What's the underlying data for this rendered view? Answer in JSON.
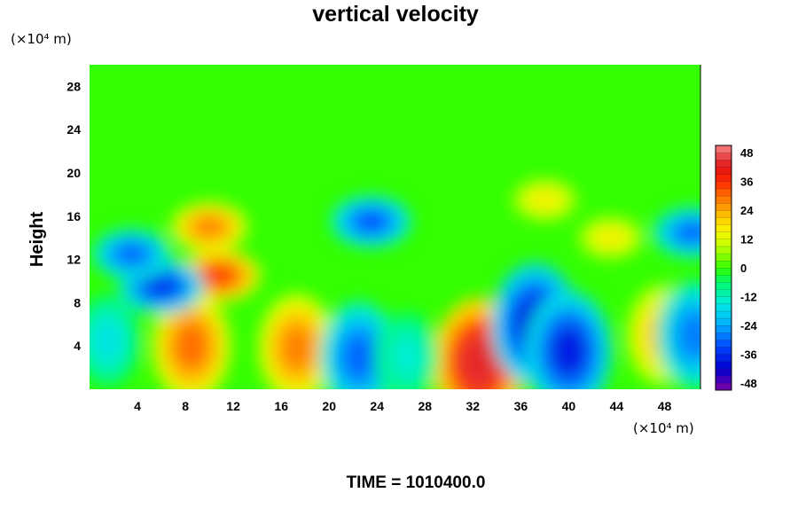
{
  "chart_data": {
    "type": "heatmap",
    "title": "vertical velocity",
    "ylabel": "Height",
    "x_unit_label": "(×10⁴ m)",
    "y_unit_label": "(×10⁴ m)",
    "x_ticks": [
      4,
      8,
      12,
      16,
      20,
      24,
      28,
      32,
      36,
      40,
      44,
      48
    ],
    "y_ticks": [
      4,
      8,
      12,
      16,
      20,
      24,
      28
    ],
    "xlim": [
      0,
      51
    ],
    "ylim": [
      0,
      30
    ],
    "colorbar": {
      "ticks": [
        48,
        36,
        24,
        12,
        0,
        -12,
        -24,
        -36,
        -48
      ],
      "range": [
        -51,
        51
      ],
      "step": 3
    },
    "features": [
      {
        "x": 8.5,
        "y": 4.0,
        "value": 30
      },
      {
        "x": 17.3,
        "y": 3.8,
        "value": 28
      },
      {
        "x": 32.5,
        "y": 2.5,
        "value": 44
      },
      {
        "x": 22.5,
        "y": 3.0,
        "value": -30
      },
      {
        "x": 26.5,
        "y": 3.0,
        "value": -14
      },
      {
        "x": 1.5,
        "y": 4.5,
        "value": -16
      },
      {
        "x": 37.2,
        "y": 6.0,
        "value": -40
      },
      {
        "x": 40.0,
        "y": 3.5,
        "value": -38
      },
      {
        "x": 47.8,
        "y": 5.0,
        "value": 22
      },
      {
        "x": 50.5,
        "y": 5.0,
        "value": -28
      },
      {
        "x": 10.0,
        "y": 15.0,
        "value": 28
      },
      {
        "x": 10.8,
        "y": 10.5,
        "value": 34
      },
      {
        "x": 6.0,
        "y": 9.5,
        "value": -36
      },
      {
        "x": 3.5,
        "y": 12.5,
        "value": -30
      },
      {
        "x": 23.5,
        "y": 15.5,
        "value": -32
      },
      {
        "x": 50.3,
        "y": 14.5,
        "value": -30
      },
      {
        "x": 38.0,
        "y": 17.5,
        "value": 16
      },
      {
        "x": 43.5,
        "y": 14.0,
        "value": 16
      }
    ]
  },
  "footer": {
    "time_label": "TIME = 1010400.0"
  }
}
